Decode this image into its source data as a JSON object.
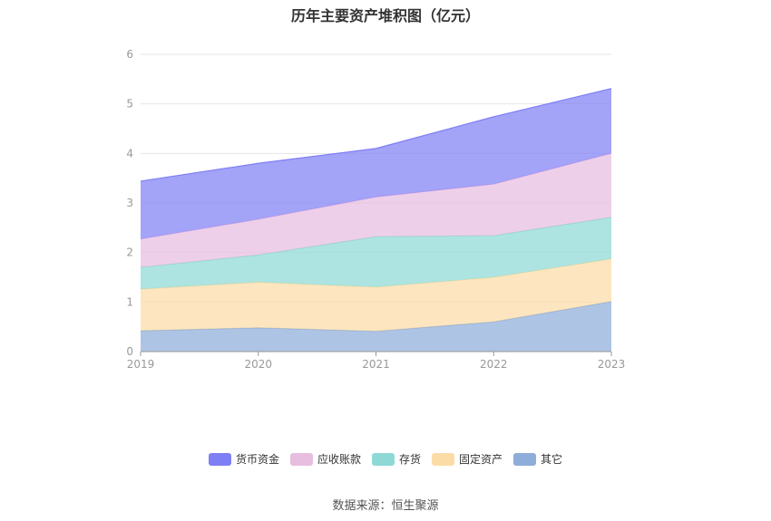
{
  "chart_data": {
    "type": "area",
    "stacked": true,
    "title": "历年主要资产堆积图（亿元）",
    "x": [
      "2019",
      "2020",
      "2021",
      "2022",
      "2023"
    ],
    "ylim": [
      0,
      6
    ],
    "yticks": [
      "0",
      "1",
      "2",
      "3",
      "4",
      "5",
      "6"
    ],
    "grid": true,
    "legend_position": "bottom",
    "series": [
      {
        "name": "其它",
        "color": "#8fadd9",
        "values": [
          0.42,
          0.48,
          0.41,
          0.6,
          1.01
        ]
      },
      {
        "name": "固定资产",
        "color": "#fcdca6",
        "values": [
          0.84,
          0.92,
          0.89,
          0.9,
          0.86
        ]
      },
      {
        "name": "存货",
        "color": "#8ed9d6",
        "values": [
          0.44,
          0.55,
          1.02,
          0.84,
          0.84
        ]
      },
      {
        "name": "应收账款",
        "color": "#e7bde0",
        "values": [
          0.57,
          0.72,
          0.8,
          1.04,
          1.29
        ]
      },
      {
        "name": "货币资金",
        "color": "#7f7ff5",
        "values": [
          1.17,
          1.13,
          0.98,
          1.36,
          1.31
        ]
      }
    ]
  },
  "legend": {
    "items": [
      {
        "label": "货币资金",
        "color": "#7f7ff5"
      },
      {
        "label": "应收账款",
        "color": "#e7bde0"
      },
      {
        "label": "存货",
        "color": "#8ed9d6"
      },
      {
        "label": "固定资产",
        "color": "#fcdca6"
      },
      {
        "label": "其它",
        "color": "#8fadd9"
      }
    ]
  },
  "source": "数据来源：恒生聚源"
}
